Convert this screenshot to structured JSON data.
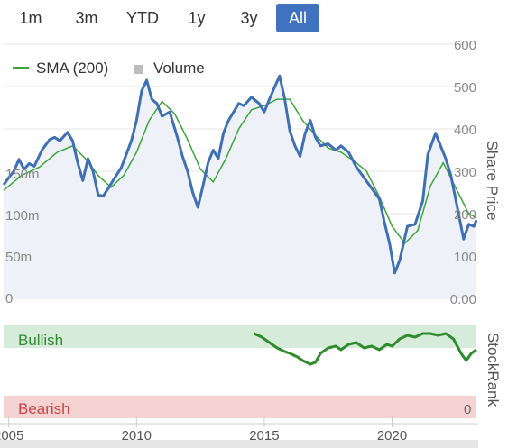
{
  "range_selector": {
    "buttons": [
      {
        "label": "1m",
        "active": false
      },
      {
        "label": "3m",
        "active": false
      },
      {
        "label": "YTD",
        "active": false
      },
      {
        "label": "1y",
        "active": false
      },
      {
        "label": "3y",
        "active": false
      },
      {
        "label": "All",
        "active": true
      }
    ]
  },
  "legend": {
    "sma_label": "SMA (200)",
    "volume_label": "Volume"
  },
  "axis_titles": {
    "price": "Share Price",
    "stockrank": "StockRank"
  },
  "zones": {
    "bullish": "Bullish",
    "bearish": "Bearish",
    "bearish_value": "0"
  },
  "colors": {
    "price": "#3f6fb5",
    "sma": "#3aa63a",
    "volume": "#bdbdbd",
    "rank_bull": "#2e8b2e",
    "rank_grey": "#9e9e9e",
    "bullish_band": "#d6ebd9",
    "bearish_band": "#f6d3d3",
    "accent": "#3f72bf"
  },
  "chart_data": [
    {
      "type": "line",
      "title": "",
      "ylabel": "Share Price",
      "ylim": [
        0,
        600
      ],
      "yticks": [
        "600",
        "500",
        "400",
        "300",
        "200",
        "100",
        "0.00"
      ],
      "xlim": [
        2004.8,
        2023.3
      ],
      "series": [
        {
          "name": "",
          "points": [
            [
              2004.8,
              268
            ],
            [
              2005.0,
              285
            ],
            [
              2005.2,
              300
            ],
            [
              2005.4,
              328
            ],
            [
              2005.6,
              305
            ],
            [
              2005.8,
              318
            ],
            [
              2006.0,
              312
            ],
            [
              2006.3,
              350
            ],
            [
              2006.6,
              375
            ],
            [
              2006.8,
              380
            ],
            [
              2007.0,
              372
            ],
            [
              2007.3,
              392
            ],
            [
              2007.5,
              372
            ],
            [
              2007.7,
              320
            ],
            [
              2007.9,
              278
            ],
            [
              2008.1,
              330
            ],
            [
              2008.3,
              300
            ],
            [
              2008.5,
              244
            ],
            [
              2008.7,
              242
            ],
            [
              2008.9,
              260
            ],
            [
              2009.1,
              280
            ],
            [
              2009.4,
              308
            ],
            [
              2009.6,
              340
            ],
            [
              2009.8,
              372
            ],
            [
              2010.0,
              420
            ],
            [
              2010.2,
              490
            ],
            [
              2010.4,
              515
            ],
            [
              2010.6,
              470
            ],
            [
              2010.8,
              460
            ],
            [
              2011.0,
              430
            ],
            [
              2011.3,
              440
            ],
            [
              2011.6,
              380
            ],
            [
              2011.8,
              335
            ],
            [
              2012.0,
              300
            ],
            [
              2012.2,
              250
            ],
            [
              2012.4,
              215
            ],
            [
              2012.6,
              265
            ],
            [
              2012.8,
              320
            ],
            [
              2013.0,
              350
            ],
            [
              2013.2,
              330
            ],
            [
              2013.4,
              390
            ],
            [
              2013.6,
              420
            ],
            [
              2013.8,
              440
            ],
            [
              2014.0,
              460
            ],
            [
              2014.2,
              455
            ],
            [
              2014.5,
              475
            ],
            [
              2014.8,
              460
            ],
            [
              2015.0,
              440
            ],
            [
              2015.2,
              470
            ],
            [
              2015.4,
              498
            ],
            [
              2015.6,
              525
            ],
            [
              2015.8,
              470
            ],
            [
              2016.0,
              395
            ],
            [
              2016.2,
              360
            ],
            [
              2016.4,
              335
            ],
            [
              2016.6,
              390
            ],
            [
              2016.8,
              420
            ],
            [
              2017.0,
              380
            ],
            [
              2017.2,
              360
            ],
            [
              2017.5,
              365
            ],
            [
              2017.8,
              350
            ],
            [
              2018.0,
              360
            ],
            [
              2018.3,
              345
            ],
            [
              2018.6,
              310
            ],
            [
              2018.9,
              285
            ],
            [
              2019.2,
              260
            ],
            [
              2019.5,
              235
            ],
            [
              2019.7,
              180
            ],
            [
              2019.9,
              130
            ],
            [
              2020.1,
              60
            ],
            [
              2020.3,
              90
            ],
            [
              2020.6,
              170
            ],
            [
              2020.9,
              175
            ],
            [
              2021.2,
              230
            ],
            [
              2021.4,
              340
            ],
            [
              2021.7,
              390
            ],
            [
              2021.9,
              360
            ],
            [
              2022.1,
              330
            ],
            [
              2022.3,
              290
            ],
            [
              2022.6,
              200
            ],
            [
              2022.8,
              140
            ],
            [
              2023.0,
              175
            ],
            [
              2023.2,
              170
            ],
            [
              2023.3,
              185
            ]
          ]
        },
        {
          "name": "SMA (200)",
          "points": [
            [
              2004.8,
              255
            ],
            [
              2005.5,
              290
            ],
            [
              2006.2,
              310
            ],
            [
              2006.9,
              345
            ],
            [
              2007.5,
              360
            ],
            [
              2008.0,
              330
            ],
            [
              2008.5,
              290
            ],
            [
              2009.0,
              262
            ],
            [
              2009.5,
              290
            ],
            [
              2010.0,
              345
            ],
            [
              2010.5,
              420
            ],
            [
              2011.0,
              465
            ],
            [
              2011.5,
              435
            ],
            [
              2012.0,
              375
            ],
            [
              2012.5,
              305
            ],
            [
              2013.0,
              275
            ],
            [
              2013.5,
              330
            ],
            [
              2014.0,
              400
            ],
            [
              2014.5,
              445
            ],
            [
              2015.0,
              455
            ],
            [
              2015.5,
              470
            ],
            [
              2016.0,
              470
            ],
            [
              2016.5,
              420
            ],
            [
              2017.0,
              385
            ],
            [
              2017.5,
              355
            ],
            [
              2018.0,
              345
            ],
            [
              2018.5,
              325
            ],
            [
              2019.0,
              300
            ],
            [
              2019.5,
              240
            ],
            [
              2020.0,
              170
            ],
            [
              2020.5,
              130
            ],
            [
              2021.0,
              160
            ],
            [
              2021.5,
              265
            ],
            [
              2022.0,
              320
            ],
            [
              2022.5,
              260
            ],
            [
              2023.0,
              200
            ],
            [
              2023.3,
              190
            ]
          ]
        }
      ]
    },
    {
      "type": "bar",
      "ylabel": "Volume",
      "yticks": [
        "150m",
        "100m",
        "50m",
        "0"
      ],
      "ylim": [
        0,
        175
      ]
    },
    {
      "type": "line",
      "ylabel": "StockRank",
      "ylim": [
        0,
        100
      ],
      "yticks": [
        "0"
      ],
      "xlim": [
        2004.8,
        2023.3
      ],
      "xticks": [
        "2005",
        "2010",
        "2015",
        "2020"
      ],
      "series": [
        {
          "name": "",
          "points": [
            [
              2014.6,
              92
            ],
            [
              2014.9,
              88
            ],
            [
              2015.2,
              82
            ],
            [
              2015.5,
              76
            ],
            [
              2015.8,
              72
            ],
            [
              2016.0,
              70
            ],
            [
              2016.3,
              66
            ],
            [
              2016.5,
              62
            ],
            [
              2016.8,
              58
            ],
            [
              2017.0,
              60
            ],
            [
              2017.2,
              70
            ],
            [
              2017.5,
              76
            ],
            [
              2017.8,
              78
            ],
            [
              2018.0,
              74
            ],
            [
              2018.3,
              80
            ],
            [
              2018.6,
              82
            ],
            [
              2018.9,
              76
            ],
            [
              2019.2,
              78
            ],
            [
              2019.5,
              74
            ],
            [
              2019.8,
              80
            ],
            [
              2020.0,
              78
            ],
            [
              2020.3,
              86
            ],
            [
              2020.6,
              90
            ],
            [
              2020.9,
              88
            ],
            [
              2021.2,
              92
            ],
            [
              2021.5,
              92
            ],
            [
              2021.8,
              90
            ],
            [
              2022.1,
              92
            ],
            [
              2022.4,
              86
            ],
            [
              2022.7,
              70
            ],
            [
              2022.9,
              62
            ],
            [
              2023.1,
              70
            ],
            [
              2023.3,
              74
            ]
          ]
        }
      ]
    }
  ]
}
